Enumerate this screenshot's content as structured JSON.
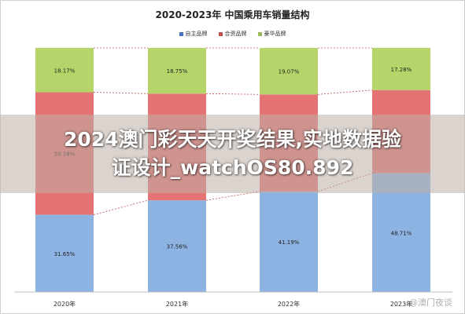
{
  "chart_data": {
    "type": "bar",
    "stacked": true,
    "title": "2020-2023年 中国乘用车销量结构",
    "categories": [
      "2020年",
      "2021年",
      "2022年",
      "2023年"
    ],
    "series": [
      {
        "name": "自主品牌",
        "color": "#8db3e2",
        "values": [
          31.65,
          37.56,
          41.19,
          48.71
        ],
        "labels": [
          "31.65%",
          "37.56%",
          "41.19%",
          "48.71%"
        ]
      },
      {
        "name": "合资品牌",
        "color": "#e57373",
        "values": [
          50.18,
          43.69,
          39.74,
          34.01
        ],
        "labels": [
          "50.18%",
          "",
          "",
          ""
        ]
      },
      {
        "name": "豪华品牌",
        "color": "#b5d56a",
        "values": [
          18.17,
          18.75,
          19.07,
          17.28
        ],
        "labels": [
          "18.17%",
          "18.75%",
          "19.07%",
          "17.28%"
        ]
      }
    ],
    "ylim": [
      0,
      100
    ],
    "legend_position": "top-center",
    "grid": false
  },
  "overlay": {
    "line1": "2024澳门彩天天开奖结果,实地数据验",
    "line2": "证设计_watchOS80.892"
  },
  "watermark": "@澳门夜谈"
}
